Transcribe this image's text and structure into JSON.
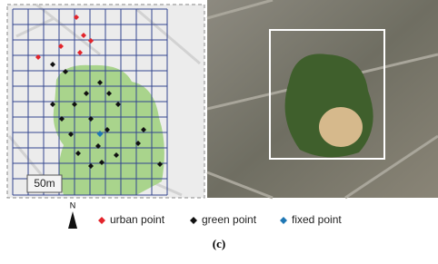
{
  "map": {
    "scale_label": "50m"
  },
  "legend": {
    "north": "N",
    "items": [
      {
        "label": "urban point",
        "color": "#e3242b"
      },
      {
        "label": "green point",
        "color": "#111111"
      },
      {
        "label": "fixed point",
        "color": "#1f77b4"
      }
    ]
  },
  "caption": "(c)"
}
